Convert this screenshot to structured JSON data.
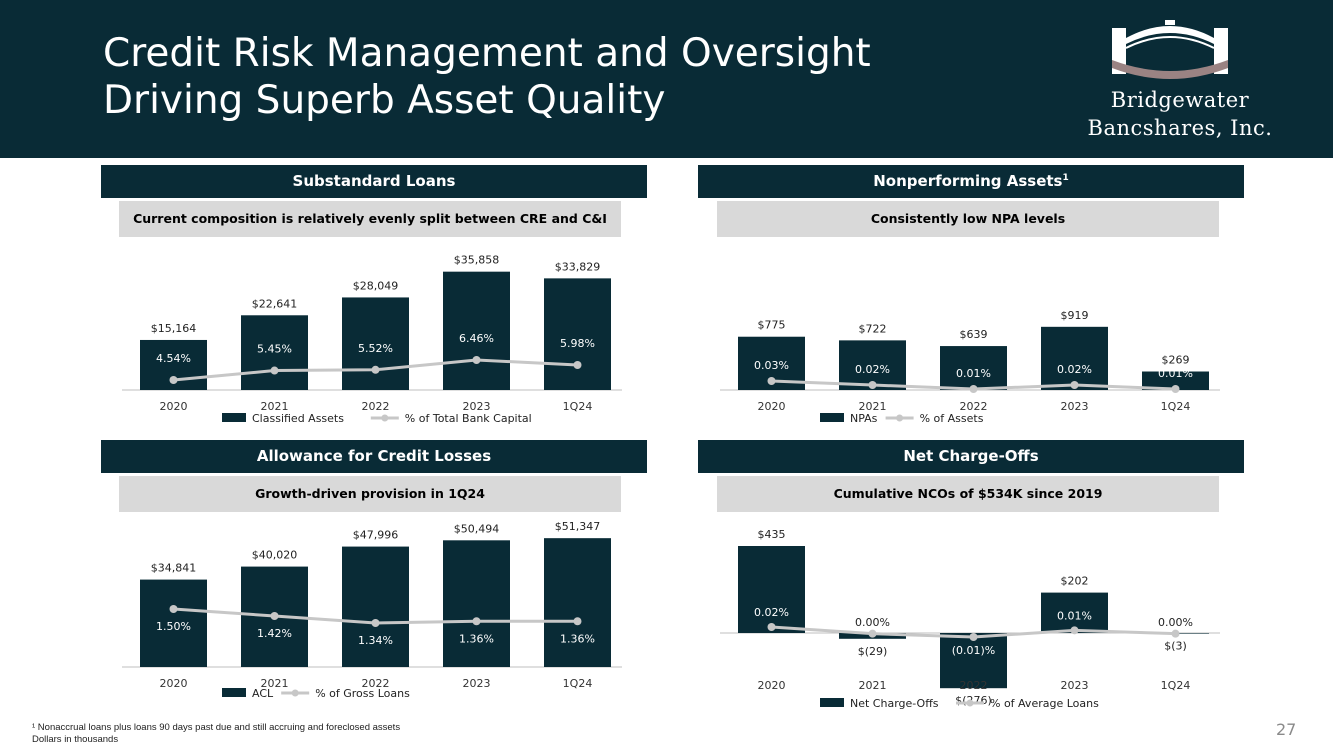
{
  "header": {
    "title_line1": "Credit Risk Management and Oversight",
    "title_line2": "Driving Superb Asset Quality",
    "logo_line1": "Bridgewater",
    "logo_line2": "Bancshares, Inc."
  },
  "colors": {
    "navy": "#092b36",
    "gray_line": "#c7c7c7",
    "band": "#d9d9d9"
  },
  "panels": {
    "substandard": {
      "title": "Substandard Loans",
      "subtitle": "Current composition is relatively evenly split between CRE and C&I"
    },
    "npa": {
      "title": "Nonperforming Assets",
      "title_sup": "1",
      "subtitle": "Consistently low NPA levels"
    },
    "acl": {
      "title": "Allowance for Credit Losses",
      "subtitle": "Growth-driven provision in 1Q24"
    },
    "nco": {
      "title": "Net Charge-Offs",
      "subtitle": "Cumulative NCOs of $534K since 2019"
    }
  },
  "chart_data": [
    {
      "id": "substandard",
      "type": "bar",
      "categories": [
        "2020",
        "2021",
        "2022",
        "2023",
        "1Q24"
      ],
      "series": [
        {
          "name": "Classified Assets",
          "values": [
            15164,
            22641,
            28049,
            35858,
            33829
          ],
          "labels": [
            "$15,164",
            "$22,641",
            "$28,049",
            "$35,858",
            "$33,829"
          ]
        },
        {
          "name": "% of Total Bank Capital",
          "type": "line",
          "values": [
            4.54,
            5.45,
            5.52,
            6.46,
            5.98
          ],
          "labels": [
            "4.54%",
            "5.45%",
            "5.52%",
            "6.46%",
            "5.98%"
          ]
        }
      ],
      "ylim": [
        0,
        40000
      ]
    },
    {
      "id": "npa",
      "type": "bar",
      "categories": [
        "2020",
        "2021",
        "2022",
        "2023",
        "1Q24"
      ],
      "series": [
        {
          "name": "NPAs",
          "values": [
            775,
            722,
            639,
            919,
            269
          ],
          "labels": [
            "$775",
            "$722",
            "$639",
            "$919",
            "$269"
          ]
        },
        {
          "name": "% of Assets",
          "type": "line",
          "values": [
            0.03,
            0.02,
            0.01,
            0.02,
            0.01
          ],
          "labels": [
            "0.03%",
            "0.02%",
            "0.01%",
            "0.02%",
            "0.01%"
          ]
        }
      ],
      "ylim": [
        0,
        1600
      ]
    },
    {
      "id": "acl",
      "type": "bar",
      "categories": [
        "2020",
        "2021",
        "2022",
        "2023",
        "1Q24"
      ],
      "series": [
        {
          "name": "ACL",
          "values": [
            34841,
            40020,
            47996,
            50494,
            51347
          ],
          "labels": [
            "$34,841",
            "$40,020",
            "$47,996",
            "$50,494",
            "$51,347"
          ]
        },
        {
          "name": "% of Gross Loans",
          "type": "line",
          "values": [
            1.5,
            1.42,
            1.34,
            1.36,
            1.36
          ],
          "labels": [
            "1.50%",
            "1.42%",
            "1.34%",
            "1.36%",
            "1.36%"
          ]
        }
      ],
      "ylim": [
        0,
        55000
      ]
    },
    {
      "id": "nco",
      "type": "bar",
      "categories": [
        "2020",
        "2021",
        "2022",
        "2023",
        "1Q24"
      ],
      "series": [
        {
          "name": "Net Charge-Offs",
          "values": [
            435,
            -29,
            -276,
            202,
            -3
          ],
          "labels": [
            "$435",
            "$(29)",
            "$(276)",
            "$202",
            "$(3)"
          ]
        },
        {
          "name": "% of Average Loans",
          "type": "line",
          "values": [
            0.02,
            0.0,
            -0.01,
            0.01,
            0.0
          ],
          "labels": [
            "0.02%",
            "0.00%",
            "(0.01)%",
            "0.01%",
            "0.00%"
          ]
        }
      ],
      "ylim": [
        -400,
        800
      ]
    }
  ],
  "footnotes": {
    "line1": "¹ Nonaccrual loans plus loans 90 days past due and still accruing and foreclosed assets",
    "line2": "Dollars in thousands"
  },
  "page_number": "27"
}
